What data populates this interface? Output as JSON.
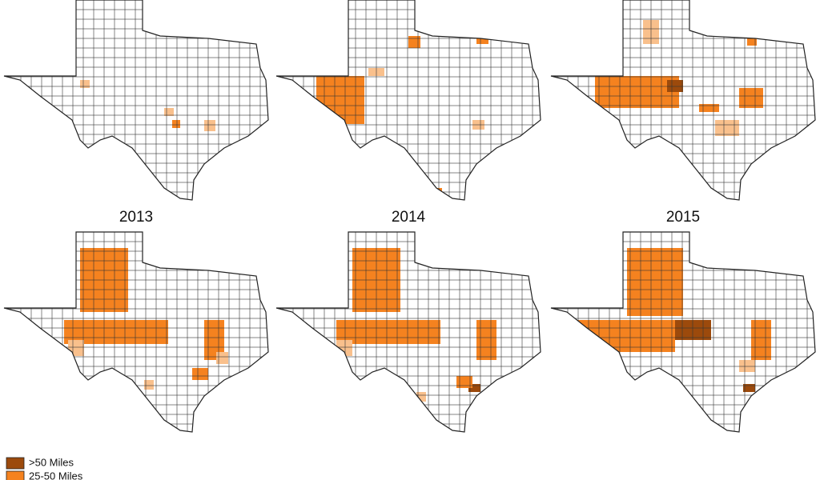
{
  "maps": [
    {
      "title": "2013"
    },
    {
      "title": "2014"
    },
    {
      "title": "2015"
    }
  ],
  "legend": [
    {
      "label": ">50 Miles",
      "color": "#9c4a0c"
    },
    {
      "label": "25-50 Miles",
      "color": "#f5821f"
    }
  ]
}
